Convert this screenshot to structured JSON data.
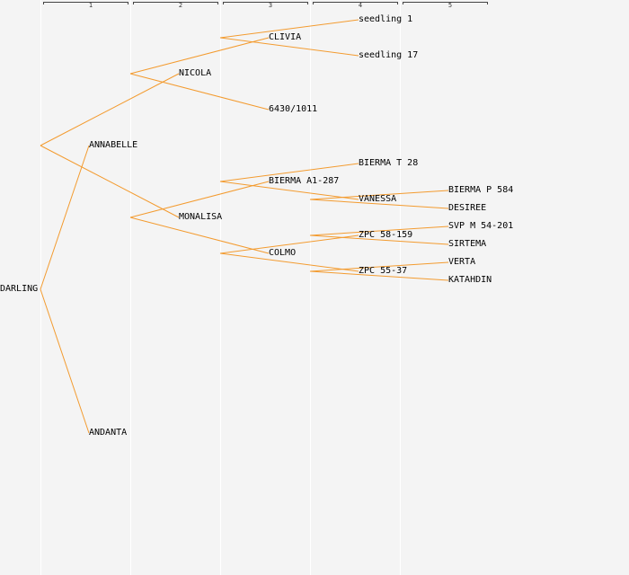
{
  "generations": [
    "1",
    "2",
    "3",
    "4",
    "5"
  ],
  "tree": {
    "root": "DARLING",
    "nodes": {
      "darling": "DARLING",
      "annabelle": "ANNABELLE",
      "andanta": "ANDANTA",
      "nicola": "NICOLA",
      "monalisa": "MONALISA",
      "clivia": "CLIVIA",
      "n6430": "6430/1011",
      "bierma_a1": "BIERMA A1-287",
      "colmo": "COLMO",
      "seedling1": "seedling 1",
      "seedling17": "seedling 17",
      "bierma_t28": "BIERMA T 28",
      "vanessa": "VANESSA",
      "zpc58": "ZPC 58-159",
      "zpc55": "ZPC 55-37",
      "bierma_p584": "BIERMA P 584",
      "desiree": "DESIREE",
      "svp": "SVP M 54-201",
      "sirtema": "SIRTEMA",
      "verta": "VERTA",
      "katahdin": "KATAHDIN"
    },
    "edges": [
      [
        "darling",
        "annabelle"
      ],
      [
        "darling",
        "andanta"
      ],
      [
        "annabelle",
        "nicola"
      ],
      [
        "annabelle",
        "monalisa"
      ],
      [
        "nicola",
        "clivia"
      ],
      [
        "nicola",
        "n6430"
      ],
      [
        "monalisa",
        "bierma_a1"
      ],
      [
        "monalisa",
        "colmo"
      ],
      [
        "clivia",
        "seedling1"
      ],
      [
        "clivia",
        "seedling17"
      ],
      [
        "bierma_a1",
        "bierma_t28"
      ],
      [
        "bierma_a1",
        "vanessa"
      ],
      [
        "colmo",
        "zpc58"
      ],
      [
        "colmo",
        "zpc55"
      ],
      [
        "vanessa",
        "bierma_p584"
      ],
      [
        "vanessa",
        "desiree"
      ],
      [
        "zpc58",
        "svp"
      ],
      [
        "zpc58",
        "sirtema"
      ],
      [
        "zpc55",
        "verta"
      ],
      [
        "zpc55",
        "katahdin"
      ]
    ]
  },
  "colors": {
    "edge": "#f39b2f",
    "background": "#f4f4f4",
    "column_divider": "#ffffff"
  }
}
